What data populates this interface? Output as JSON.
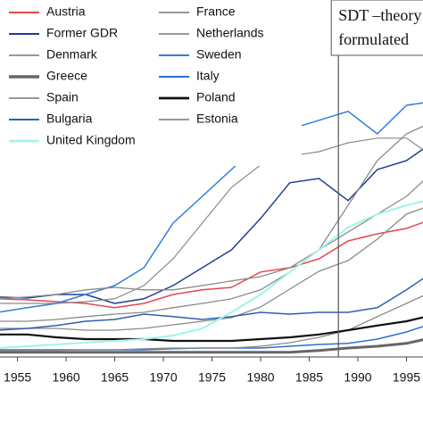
{
  "chart_data": {
    "type": "line",
    "x": [
      1953,
      1956,
      1959,
      1962,
      1965,
      1968,
      1971,
      1974,
      1977,
      1980,
      1983,
      1986,
      1989,
      1992,
      1995,
      1997
    ],
    "xlim": [
      1953.2,
      1996.7
    ],
    "xticks": [
      1955,
      1960,
      1965,
      1970,
      1975,
      1980,
      1985,
      1990,
      1995
    ],
    "ylim": [
      0,
      100
    ],
    "annotation": {
      "x": 1988,
      "lines": [
        "SDT –theory",
        "formulated"
      ]
    },
    "series": [
      {
        "name": "Austria",
        "color": "#e8474f",
        "width": 1.5,
        "values": [
          16.3,
          16,
          15.5,
          15,
          13.8,
          15,
          17.5,
          18.8,
          19.5,
          23.8,
          25,
          27.5,
          32.5,
          34.5,
          36,
          38
        ]
      },
      {
        "name": "France",
        "color": "#8a8a8a",
        "width": 1.3,
        "values": [
          8,
          8,
          8,
          7.5,
          7.5,
          8,
          9,
          10,
          11,
          14,
          19,
          24,
          27,
          33,
          40,
          42
        ]
      },
      {
        "name": "Former GDR",
        "color": "#1f3f8f",
        "width": 1.5,
        "values": [
          16.8,
          16.5,
          17.5,
          17.5,
          15,
          16.3,
          20,
          25,
          30,
          38.8,
          48.8,
          50,
          43.8,
          52.5,
          55,
          58.8
        ]
      },
      {
        "name": "Netherlands",
        "color": "#8a8a8a",
        "width": 1.3,
        "values": [
          10,
          10,
          10.5,
          11.3,
          12,
          12.5,
          13.8,
          15,
          16.3,
          18.8,
          23.8,
          30,
          35,
          40,
          45,
          50
        ]
      },
      {
        "name": "Denmark",
        "color": "#8a8a8a",
        "width": 1.2,
        "values": [
          15,
          15,
          15,
          15.5,
          16.3,
          20,
          27.5,
          37.5,
          47.5,
          53.8,
          56.3,
          57.5,
          60,
          61.3,
          61.3,
          57.5
        ]
      },
      {
        "name": "Sweden",
        "color": "#2e7de0",
        "width": 1.5,
        "values": [
          12.5,
          13.8,
          15,
          17.5,
          20,
          25,
          37.5,
          45,
          52.5,
          60,
          63.8,
          66.3,
          68.8,
          62.5,
          70.5,
          71.3
        ]
      },
      {
        "name": "Greece",
        "color": "#666666",
        "width": 3,
        "values": [
          1.3,
          1.3,
          1.3,
          1.3,
          1.3,
          1.3,
          1.3,
          1.3,
          1.3,
          1.3,
          1.3,
          1.8,
          2.5,
          3,
          3.8,
          5
        ]
      },
      {
        "name": "Italy",
        "color": "#2e6fd0",
        "width": 1.5,
        "values": [
          2,
          2,
          2,
          2,
          2,
          2,
          2.3,
          2.5,
          2.5,
          2.5,
          3,
          3.5,
          3.8,
          5,
          7,
          8.8
        ]
      },
      {
        "name": "Spain",
        "color": "#8a8a8a",
        "width": 1.3,
        "values": [
          1.8,
          1.8,
          1.8,
          2,
          2,
          2.3,
          2.5,
          2.5,
          2.5,
          3,
          4,
          5.5,
          7.5,
          11.3,
          15,
          17.5
        ]
      },
      {
        "name": "Poland",
        "color": "#111111",
        "width": 2.2,
        "values": [
          6.3,
          6.3,
          5.5,
          5,
          5,
          5,
          4.5,
          4.5,
          4.5,
          5,
          5.5,
          6.3,
          7.5,
          8.8,
          10,
          11.3
        ]
      },
      {
        "name": "Bulgaria",
        "color": "#2e5fb0",
        "width": 1.5,
        "values": [
          7.5,
          8,
          8.8,
          10,
          10.5,
          12,
          11.3,
          10.5,
          11.3,
          12.5,
          12,
          12.5,
          12.5,
          13.8,
          18.8,
          22.5
        ]
      },
      {
        "name": "Estonia",
        "color": "#8a8a8a",
        "width": 1.3,
        "values": [
          16.3,
          16.8,
          17.5,
          18.8,
          19.5,
          18.8,
          18.8,
          20,
          21.3,
          22.5,
          25,
          30,
          42.5,
          55,
          62.5,
          65
        ]
      },
      {
        "name": "United Kingdom",
        "color": "#9ff5e8",
        "width": 2,
        "values": [
          2.5,
          3,
          3.5,
          4,
          4.5,
          5,
          6,
          8,
          12.5,
          17.5,
          23.8,
          30,
          36.3,
          40,
          42.5,
          43.8
        ]
      }
    ]
  }
}
